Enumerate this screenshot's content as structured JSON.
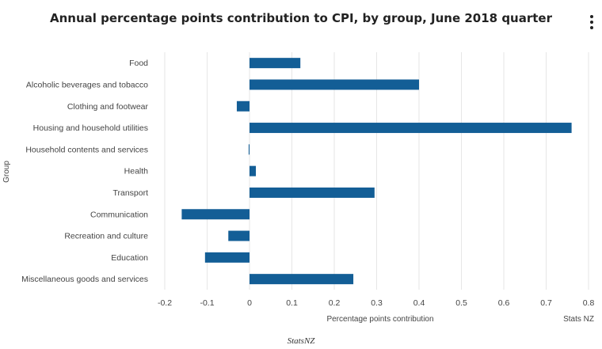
{
  "chart_data": {
    "type": "bar",
    "orientation": "horizontal",
    "title": "Annual percentage points contribution to CPI, by group, June 2018 quarter",
    "xlabel": "Percentage points contribution",
    "ylabel": "Group",
    "xlim": [
      -0.2,
      0.8
    ],
    "xticks": [
      -0.2,
      -0.1,
      0,
      0.1,
      0.2,
      0.3,
      0.4,
      0.5,
      0.6,
      0.7,
      0.8
    ],
    "xtick_labels": [
      "-0.2",
      "-0.1",
      "0",
      "0.1",
      "0.2",
      "0.3",
      "0.4",
      "0.5",
      "0.6",
      "0.7",
      "0.8"
    ],
    "grid": true,
    "categories": [
      "Food",
      "Alcoholic beverages and tobacco",
      "Clothing and footwear",
      "Housing and household utilities",
      "Household contents and services",
      "Health",
      "Transport",
      "Communication",
      "Recreation and culture",
      "Education",
      "Miscellaneous goods and services"
    ],
    "values": [
      0.12,
      0.4,
      -0.03,
      0.76,
      -0.002,
      0.015,
      0.295,
      -0.16,
      -0.05,
      -0.105,
      0.245
    ],
    "bar_color": "#135e96",
    "credit": "Stats NZ"
  },
  "menu": {
    "icon": "vertical-ellipsis-icon"
  },
  "footer": {
    "source": "StatsNZ"
  }
}
